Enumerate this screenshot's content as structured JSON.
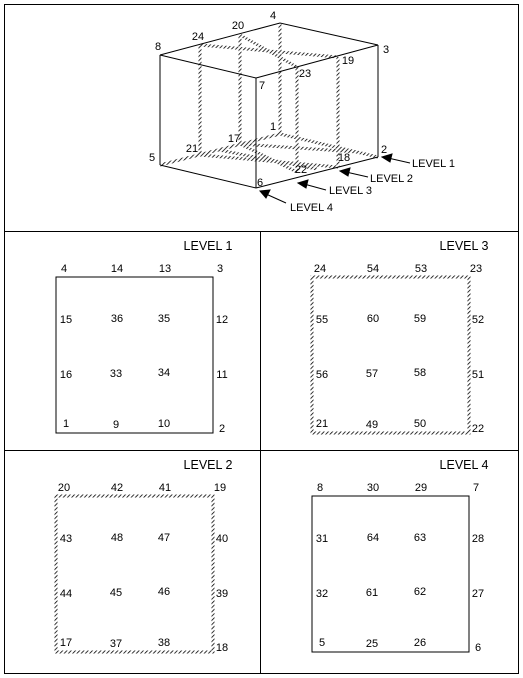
{
  "cube": {
    "corner_labels": [
      "1",
      "2",
      "3",
      "4",
      "5",
      "6",
      "7",
      "8"
    ],
    "edge_labels": [
      "17",
      "18",
      "19",
      "20",
      "21",
      "22",
      "23",
      "24"
    ],
    "level_callouts": [
      "LEVEL 1",
      "LEVEL 2",
      "LEVEL 3",
      "LEVEL 4"
    ]
  },
  "panels": [
    {
      "title": "LEVEL 1",
      "border": "solid",
      "corners": [
        "4",
        "3",
        "2",
        "1"
      ],
      "top_mid": [
        "14",
        "13"
      ],
      "bottom_mid": [
        "9",
        "10"
      ],
      "left_mid": [
        "15",
        "16"
      ],
      "right_mid": [
        "12",
        "11"
      ],
      "inner": [
        "36",
        "35",
        "33",
        "34"
      ]
    },
    {
      "title": "LEVEL 3",
      "border": "hatched",
      "corners": [
        "24",
        "23",
        "22",
        "21"
      ],
      "top_mid": [
        "54",
        "53"
      ],
      "bottom_mid": [
        "49",
        "50"
      ],
      "left_mid": [
        "55",
        "56"
      ],
      "right_mid": [
        "52",
        "51"
      ],
      "inner": [
        "60",
        "59",
        "57",
        "58"
      ]
    },
    {
      "title": "LEVEL 2",
      "border": "hatched",
      "corners": [
        "20",
        "19",
        "18",
        "17"
      ],
      "top_mid": [
        "42",
        "41"
      ],
      "bottom_mid": [
        "37",
        "38"
      ],
      "left_mid": [
        "43",
        "44"
      ],
      "right_mid": [
        "40",
        "39"
      ],
      "inner": [
        "48",
        "47",
        "45",
        "46"
      ]
    },
    {
      "title": "LEVEL 4",
      "border": "solid",
      "corners": [
        "8",
        "7",
        "6",
        "5"
      ],
      "top_mid": [
        "30",
        "29"
      ],
      "bottom_mid": [
        "25",
        "26"
      ],
      "left_mid": [
        "31",
        "32"
      ],
      "right_mid": [
        "28",
        "27"
      ],
      "inner": [
        "64",
        "63",
        "61",
        "62"
      ]
    }
  ]
}
